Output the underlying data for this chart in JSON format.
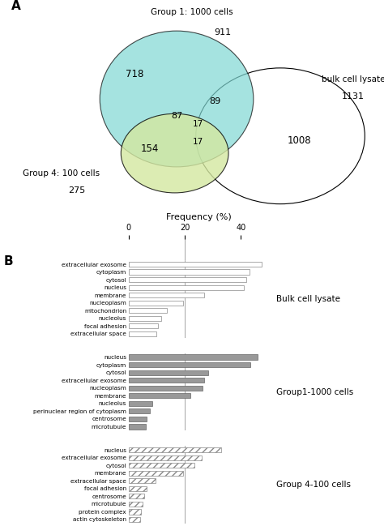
{
  "venn": {
    "group1_label": "Group 1: 1000 cells",
    "group1_total": "911",
    "group4_label": "Group 4: 100 cells",
    "group4_total": "275",
    "bulk_label": "bulk cell lysate",
    "bulk_total": "1131",
    "n_718": "718",
    "n_154": "154",
    "n_87": "87",
    "n_89": "89",
    "n_17a": "17",
    "n_17b": "17",
    "n_1008": "1008",
    "group1_color": "#7fd8d4",
    "group4_color": "#d4e8a0",
    "bulk_color": "#ffffff"
  },
  "bulk_bars": {
    "labels": [
      "extracellular exosome",
      "cytoplasm",
      "cytosol",
      "nucleus",
      "membrane",
      "nucleoplasm",
      "mitochondrion",
      "nucleolus",
      "focal adhesion",
      "extracellular space"
    ],
    "values": [
      47.5,
      43.0,
      42.0,
      41.0,
      27.0,
      19.5,
      13.5,
      11.5,
      10.5,
      10.0
    ],
    "color": "#ffffff",
    "edgecolor": "#888888",
    "hatch": ""
  },
  "group1_bars": {
    "labels": [
      "nucleus",
      "cytoplasm",
      "cytosol",
      "extracellular exosome",
      "nucleoplasm",
      "membrane",
      "nucleolus",
      "perinuclear region of cytoplasm",
      "centrosome",
      "microtubule"
    ],
    "values": [
      46.0,
      43.5,
      28.5,
      27.0,
      26.5,
      22.0,
      8.5,
      7.5,
      6.5,
      6.0
    ],
    "color": "#999999",
    "edgecolor": "#666666",
    "hatch": ""
  },
  "group4_bars": {
    "labels": [
      "nucleus",
      "extracellular exosome",
      "cytosol",
      "membrane",
      "extracellular space",
      "focal adhesion",
      "centrosome",
      "microtubule",
      "protein complex",
      "actin cytoskeleton"
    ],
    "values": [
      33.0,
      26.0,
      23.5,
      19.5,
      9.5,
      6.5,
      5.5,
      5.0,
      4.5,
      4.0
    ],
    "color": "#ffffff",
    "edgecolor": "#888888",
    "hatch": "////"
  },
  "xmax": 50,
  "xticks": [
    0,
    20,
    40
  ],
  "xlabel": "Frequency (%)",
  "vline_x": 20,
  "group_labels": {
    "bulk": "Bulk cell lysate",
    "group1": "Group1-1000 cells",
    "group4": "Group 4-100 cells"
  }
}
